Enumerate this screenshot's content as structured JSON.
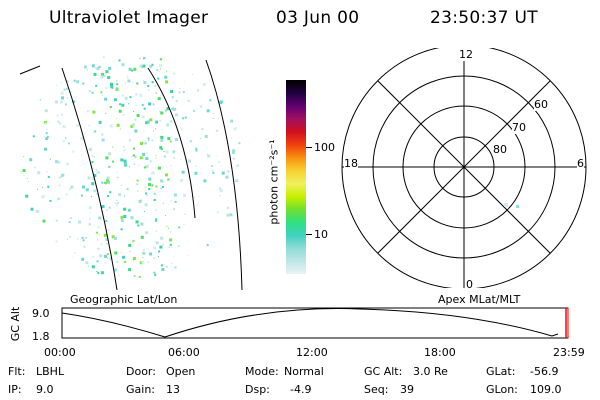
{
  "header": {
    "instrument": "Ultraviolet Imager",
    "date": "03 Jun 00",
    "time": "23:50:37 UT"
  },
  "colorbar": {
    "label": "photon cm⁻²s⁻¹",
    "ticks": [
      "100",
      "10"
    ],
    "colors": [
      "#e8f4f4",
      "#bfe6e6",
      "#8fdcd6",
      "#40d0c0",
      "#30e080",
      "#70e030",
      "#c8f000",
      "#f0f060",
      "#f8d030",
      "#f89010",
      "#f04010",
      "#d01020",
      "#a01060",
      "#600070",
      "#200040",
      "#000000"
    ]
  },
  "geo_panel": {
    "label": "Geographic Lat/Lon"
  },
  "polar_panel": {
    "label": "Apex MLat/MLT",
    "mlt_labels": {
      "top": "12",
      "left": "18",
      "right": "6",
      "bottom": "0"
    },
    "lat_labels": [
      "60",
      "70",
      "80"
    ]
  },
  "altitude_strip": {
    "axis_title": "GC Alt",
    "y_ticks": [
      "9.0",
      "1.8"
    ],
    "x_ticks": [
      "00:00",
      "06:00",
      "12:00",
      "18:00",
      "23:59"
    ]
  },
  "status": {
    "flt": {
      "label": "Flt:",
      "value": "LBHL"
    },
    "ip": {
      "label": "IP:",
      "value": "9.0"
    },
    "door": {
      "label": "Door:",
      "value": "Open"
    },
    "gain": {
      "label": "Gain:",
      "value": "13"
    },
    "mode": {
      "label": "Mode:",
      "value": "Normal"
    },
    "dsp": {
      "label": "Dsp:",
      "value": "-4.9"
    },
    "gc_alt": {
      "label": "GC Alt:",
      "value": "3.0 Re"
    },
    "seq": {
      "label": "Seq:",
      "value": "39"
    },
    "glat": {
      "label": "GLat:",
      "value": "-56.9"
    },
    "glon": {
      "label": "GLon:",
      "value": "109.0"
    }
  }
}
